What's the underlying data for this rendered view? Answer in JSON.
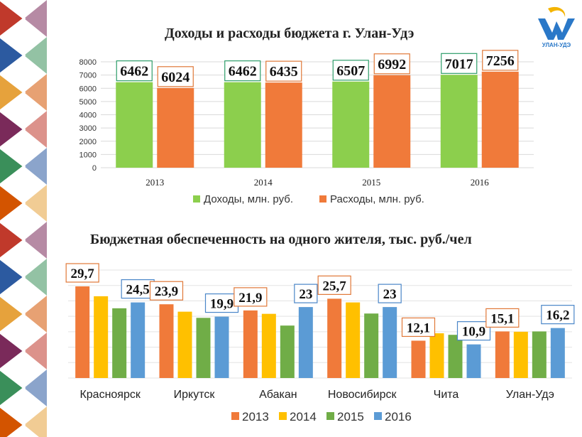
{
  "logo": {
    "text": "УЛАН-УДЭ"
  },
  "chart_data": [
    {
      "type": "bar",
      "title": "Доходы и расходы бюджета г. Улан-Удэ",
      "categories": [
        "2013",
        "2014",
        "2015",
        "2016"
      ],
      "series": [
        {
          "name": "Доходы, млн. руб.",
          "values": [
            6462,
            6462,
            6507,
            7017
          ],
          "color": "#8ccf4d",
          "label_border": "#2e9e6a"
        },
        {
          "name": "Расходы, млн. руб.",
          "values": [
            6024,
            6435,
            6992,
            7256
          ],
          "color": "#f07a3a",
          "label_border": "#e07838"
        }
      ],
      "yticks": [
        "0",
        "1000",
        "2000",
        "3000",
        "4000",
        "5000",
        "6000",
        "7000",
        "8000"
      ],
      "ylim": [
        0,
        8000
      ],
      "grid": true,
      "legend": "bottom"
    },
    {
      "type": "bar",
      "title": "Бюджетная обеспеченность на одного жителя, тыс. руб./чел",
      "categories": [
        "Красноярск",
        "Иркутск",
        "Абакан",
        "Новосибирск",
        "Чита",
        "Улан-Удэ"
      ],
      "series": [
        {
          "name": "2013",
          "values": [
            29.7,
            23.9,
            21.9,
            25.7,
            12.1,
            15.1
          ],
          "color": "#f07a3a"
        },
        {
          "name": "2014",
          "values": [
            26.5,
            21.5,
            20.8,
            24.5,
            14.5,
            15.0
          ],
          "color": "#ffc000"
        },
        {
          "name": "2015",
          "values": [
            22.6,
            19.5,
            17.0,
            20.9,
            14.0,
            15.1
          ],
          "color": "#70ad47"
        },
        {
          "name": "2016",
          "values": [
            24.5,
            19.9,
            23,
            23,
            10.9,
            16.2
          ],
          "color": "#5b9bd5"
        }
      ],
      "labels": [
        {
          "category": 0,
          "series": 0,
          "text": "29,7"
        },
        {
          "category": 0,
          "series": 3,
          "text": "24,5"
        },
        {
          "category": 1,
          "series": 0,
          "text": "23,9"
        },
        {
          "category": 1,
          "series": 3,
          "text": "19,9"
        },
        {
          "category": 2,
          "series": 0,
          "text": "21,9"
        },
        {
          "category": 2,
          "series": 3,
          "text": "23"
        },
        {
          "category": 3,
          "series": 0,
          "text": "25,7"
        },
        {
          "category": 3,
          "series": 3,
          "text": "23"
        },
        {
          "category": 4,
          "series": 0,
          "text": "12,1"
        },
        {
          "category": 4,
          "series": 3,
          "text": "10,9"
        },
        {
          "category": 5,
          "series": 0,
          "text": "15,1"
        },
        {
          "category": 5,
          "series": 3,
          "text": "16,2"
        }
      ],
      "label_borders": [
        "#e07838",
        "#4a86c8"
      ],
      "ylim": [
        0,
        35
      ],
      "grid": true,
      "legend": "bottom"
    }
  ]
}
